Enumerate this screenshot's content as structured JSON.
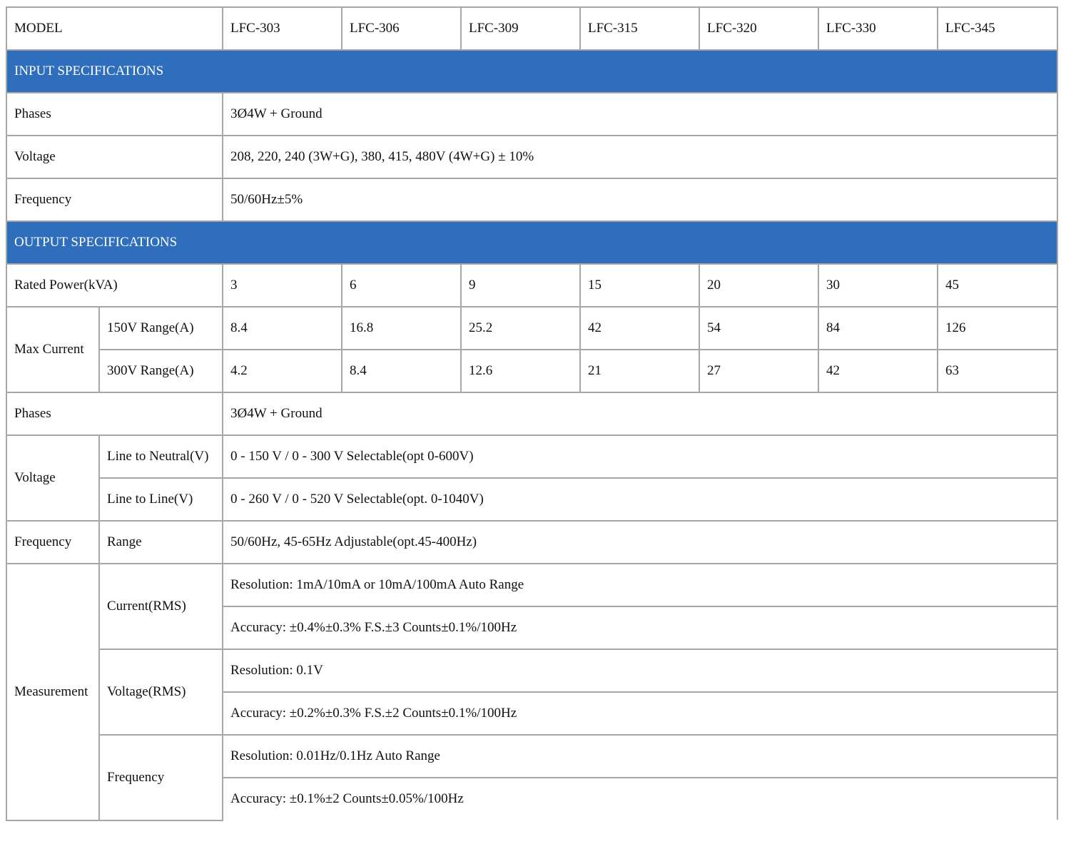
{
  "header": {
    "label": "MODEL",
    "models": [
      "LFC-303",
      "LFC-306",
      "LFC-309",
      "LFC-315",
      "LFC-320",
      "LFC-330",
      "LFC-345"
    ]
  },
  "input": {
    "title": "INPUT SPECIFICATIONS",
    "phases": {
      "label": "Phases",
      "value": "3Ø4W + Ground"
    },
    "voltage": {
      "label": "Voltage",
      "value": "208, 220, 240 (3W+G), 380, 415, 480V (4W+G) ± 10%"
    },
    "frequency": {
      "label": "Frequency",
      "value": "50/60Hz±5%"
    }
  },
  "output": {
    "title": "OUTPUT SPECIFICATIONS",
    "rated_power": {
      "label": "Rated Power(kVA)",
      "values": [
        "3",
        "6",
        "9",
        "15",
        "20",
        "30",
        "45"
      ]
    },
    "max_current": {
      "label": "Max Current",
      "range150": {
        "label": "150V Range(A)",
        "values": [
          "8.4",
          "16.8",
          "25.2",
          "42",
          "54",
          "84",
          "126"
        ]
      },
      "range300": {
        "label": "300V Range(A)",
        "values": [
          "4.2",
          "8.4",
          "12.6",
          "21",
          "27",
          "42",
          "63"
        ]
      }
    },
    "phases": {
      "label": "Phases",
      "value": "3Ø4W + Ground"
    },
    "voltage": {
      "label": "Voltage",
      "line_neutral": {
        "label": "Line to Neutral(V)",
        "value": "0 - 150 V / 0 - 300 V Selectable(opt 0-600V)"
      },
      "line_line": {
        "label": "Line to Line(V)",
        "value": "0 - 260 V / 0 - 520 V Selectable(opt. 0-1040V)"
      }
    },
    "frequency": {
      "label": "Frequency",
      "sub": "Range",
      "value": "50/60Hz, 45-65Hz Adjustable(opt.45-400Hz)"
    },
    "measurement": {
      "label": "Measurement",
      "current": {
        "label": "Current(RMS)",
        "resolution": "Resolution: 1mA/10mA or 10mA/100mA Auto Range",
        "accuracy": "Accuracy: ±0.4%±0.3% F.S.±3 Counts±0.1%/100Hz"
      },
      "voltage": {
        "label": "Voltage(RMS)",
        "resolution": "Resolution: 0.1V",
        "accuracy": "Accuracy: ±0.2%±0.3% F.S.±2 Counts±0.1%/100Hz"
      },
      "frequency": {
        "label": "Frequency",
        "resolution": "Resolution: 0.01Hz/0.1Hz Auto Range",
        "accuracy": "Accuracy: ±0.1%±2 Counts±0.05%/100Hz"
      }
    }
  }
}
